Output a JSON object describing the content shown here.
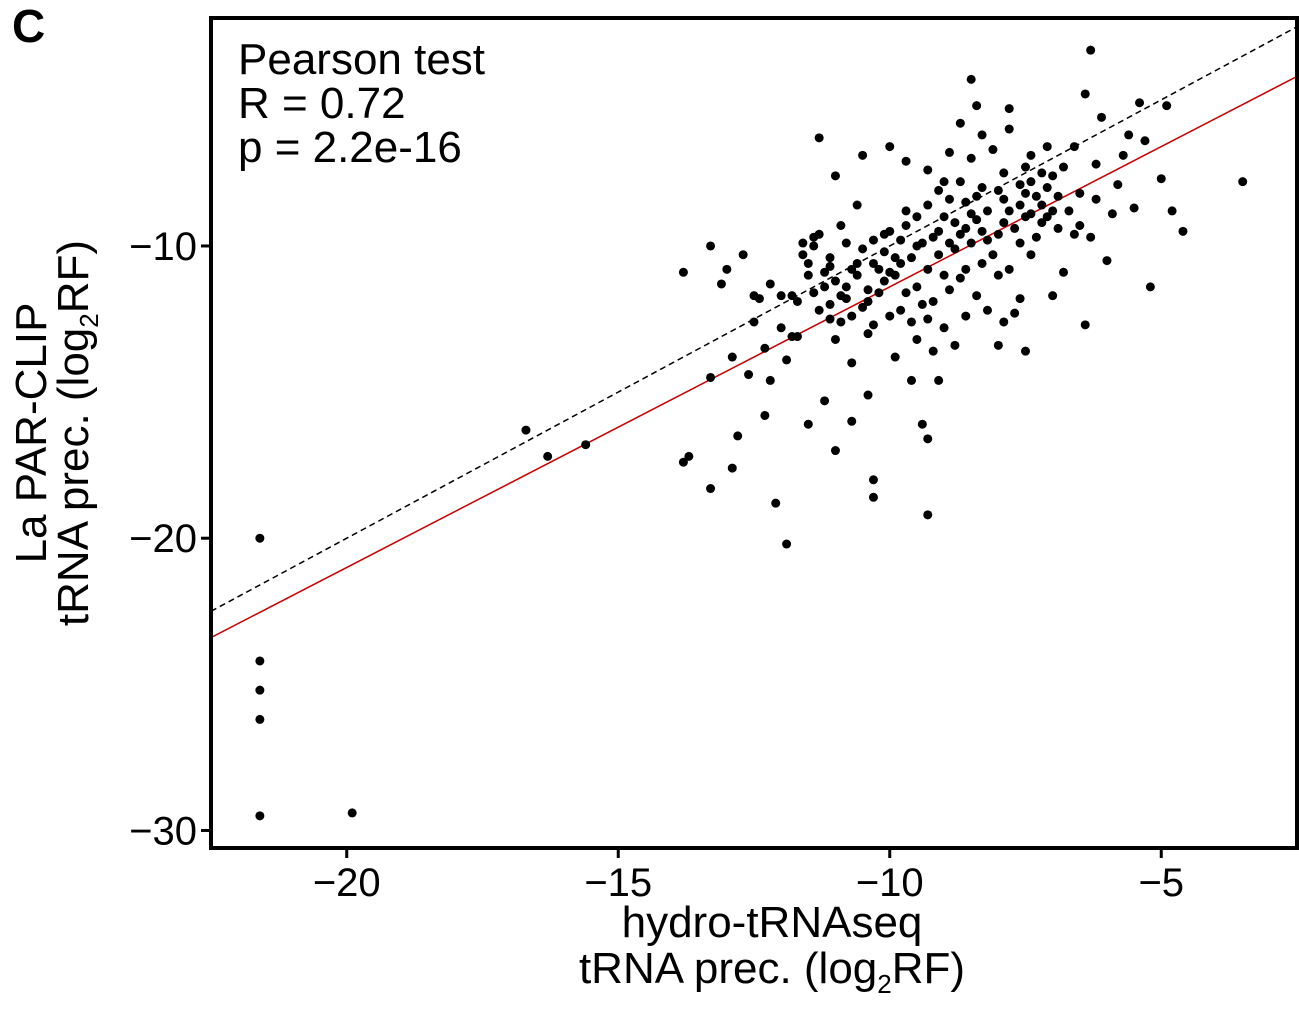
{
  "panel_label": "C",
  "chart_data": {
    "type": "scatter",
    "xlabel_line1": "hydro-tRNAseq",
    "xlabel_line2_pre": "tRNA prec. (log",
    "xlabel_line2_sub": "2",
    "xlabel_line2_post": "RF)",
    "ylabel_line1": "La PAR-CLIP",
    "ylabel_line2_pre": "tRNA prec. (log",
    "ylabel_line2_sub": "2",
    "ylabel_line2_post": "RF)",
    "xlim": [
      -22.5,
      -2.5
    ],
    "ylim": [
      -30.6,
      -2.2
    ],
    "xticks": [
      -20,
      -15,
      -10,
      -5
    ],
    "xtick_labels": [
      "−20",
      "−15",
      "−10",
      "−5"
    ],
    "yticks": [
      -10,
      -20,
      -30
    ],
    "ytick_labels": [
      "−10",
      "−20",
      "−30"
    ],
    "stats": {
      "line1": "Pearson test",
      "line2": "R = 0.72",
      "line3": "p = 2.2e-16"
    },
    "identity_line": {
      "slope": 1.0,
      "intercept": 0.0,
      "color": "#000000",
      "style": "dashed"
    },
    "regression_line": {
      "slope": 0.96,
      "intercept": -1.8,
      "color": "#cc0000",
      "style": "solid"
    },
    "point_color": "#000000",
    "points": [
      [
        -21.6,
        -20.0
      ],
      [
        -21.6,
        -24.2
      ],
      [
        -21.6,
        -25.2
      ],
      [
        -21.6,
        -26.2
      ],
      [
        -21.6,
        -29.5
      ],
      [
        -19.9,
        -29.4
      ],
      [
        -16.7,
        -16.3
      ],
      [
        -16.3,
        -17.2
      ],
      [
        -15.6,
        -16.8
      ],
      [
        -13.8,
        -10.9
      ],
      [
        -13.8,
        -17.4
      ],
      [
        -13.7,
        -17.2
      ],
      [
        -13.3,
        -10.0
      ],
      [
        -13.3,
        -14.5
      ],
      [
        -13.3,
        -18.3
      ],
      [
        -13.1,
        -11.3
      ],
      [
        -13.0,
        -10.8
      ],
      [
        -12.9,
        -13.8
      ],
      [
        -12.9,
        -17.6
      ],
      [
        -12.8,
        -16.5
      ],
      [
        -12.7,
        -10.3
      ],
      [
        -12.6,
        -14.4
      ],
      [
        -12.5,
        -12.6
      ],
      [
        -12.5,
        -11.7
      ],
      [
        -12.4,
        -11.8
      ],
      [
        -12.3,
        -13.5
      ],
      [
        -12.3,
        -15.8
      ],
      [
        -12.2,
        -14.6
      ],
      [
        -12.2,
        -11.3
      ],
      [
        -12.1,
        -18.8
      ],
      [
        -12.0,
        -11.7
      ],
      [
        -12.0,
        -12.8
      ],
      [
        -11.9,
        -20.2
      ],
      [
        -11.9,
        -13.9
      ],
      [
        -11.8,
        -13.1
      ],
      [
        -11.8,
        -11.7
      ],
      [
        -11.7,
        -11.9
      ],
      [
        -11.7,
        -13.1
      ],
      [
        -11.6,
        -9.9
      ],
      [
        -11.6,
        -10.3
      ],
      [
        -11.5,
        -11.0
      ],
      [
        -11.5,
        -16.1
      ],
      [
        -11.5,
        -10.6
      ],
      [
        -11.4,
        -9.7
      ],
      [
        -11.4,
        -10.0
      ],
      [
        -11.4,
        -11.6
      ],
      [
        -11.3,
        -12.2
      ],
      [
        -11.3,
        -6.3
      ],
      [
        -11.3,
        -9.6
      ],
      [
        -11.2,
        -10.9
      ],
      [
        -11.2,
        -11.4
      ],
      [
        -11.2,
        -15.3
      ],
      [
        -11.1,
        -12.5
      ],
      [
        -11.1,
        -12.0
      ],
      [
        -11.1,
        -10.4
      ],
      [
        -11.1,
        -10.7
      ],
      [
        -11.0,
        -7.6
      ],
      [
        -11.0,
        -11.2
      ],
      [
        -11.0,
        -13.2
      ],
      [
        -11.0,
        -17.0
      ],
      [
        -10.9,
        -9.3
      ],
      [
        -10.9,
        -11.7
      ],
      [
        -10.9,
        -12.6
      ],
      [
        -10.8,
        -11.8
      ],
      [
        -10.8,
        -9.9
      ],
      [
        -10.8,
        -11.4
      ],
      [
        -10.7,
        -14.0
      ],
      [
        -10.7,
        -12.4
      ],
      [
        -10.7,
        -10.8
      ],
      [
        -10.7,
        -16.0
      ],
      [
        -10.6,
        -10.6
      ],
      [
        -10.6,
        -8.6
      ],
      [
        -10.6,
        -11.0
      ],
      [
        -10.5,
        -6.9
      ],
      [
        -10.5,
        -10.1
      ],
      [
        -10.5,
        -12.1
      ],
      [
        -10.4,
        -11.5
      ],
      [
        -10.4,
        -15.1
      ],
      [
        -10.4,
        -11.9
      ],
      [
        -10.4,
        -13.0
      ],
      [
        -10.3,
        -9.8
      ],
      [
        -10.3,
        -10.6
      ],
      [
        -10.3,
        -12.7
      ],
      [
        -10.3,
        -18.0
      ],
      [
        -10.3,
        -18.6
      ],
      [
        -10.2,
        -10.8
      ],
      [
        -10.2,
        -11.6
      ],
      [
        -10.1,
        -10.2
      ],
      [
        -10.1,
        -9.6
      ],
      [
        -10.1,
        -11.2
      ],
      [
        -10.0,
        -6.6
      ],
      [
        -10.0,
        -9.5
      ],
      [
        -10.0,
        -10.9
      ],
      [
        -10.0,
        -12.4
      ],
      [
        -9.9,
        -13.8
      ],
      [
        -9.9,
        -10.4
      ],
      [
        -9.9,
        -11.0
      ],
      [
        -9.8,
        -9.8
      ],
      [
        -9.8,
        -12.2
      ],
      [
        -9.8,
        -10.6
      ],
      [
        -9.7,
        -7.1
      ],
      [
        -9.7,
        -8.8
      ],
      [
        -9.7,
        -9.3
      ],
      [
        -9.7,
        -11.6
      ],
      [
        -9.6,
        -10.4
      ],
      [
        -9.6,
        -12.6
      ],
      [
        -9.6,
        -14.6
      ],
      [
        -9.5,
        -9.0
      ],
      [
        -9.5,
        -10.0
      ],
      [
        -9.5,
        -11.4
      ],
      [
        -9.5,
        -13.2
      ],
      [
        -9.4,
        -9.9
      ],
      [
        -9.4,
        -12.0
      ],
      [
        -9.4,
        -16.1
      ],
      [
        -9.3,
        -7.4
      ],
      [
        -9.3,
        -8.6
      ],
      [
        -9.3,
        -10.8
      ],
      [
        -9.3,
        -12.5
      ],
      [
        -9.3,
        -16.6
      ],
      [
        -9.3,
        -19.2
      ],
      [
        -9.2,
        -9.7
      ],
      [
        -9.2,
        -11.9
      ],
      [
        -9.2,
        -13.6
      ],
      [
        -9.1,
        -8.1
      ],
      [
        -9.1,
        -9.5
      ],
      [
        -9.1,
        -10.3
      ],
      [
        -9.1,
        -14.6
      ],
      [
        -9.0,
        -7.8
      ],
      [
        -9.0,
        -9.0
      ],
      [
        -9.0,
        -11.0
      ],
      [
        -9.0,
        -12.8
      ],
      [
        -8.9,
        -6.8
      ],
      [
        -8.9,
        -8.4
      ],
      [
        -8.9,
        -9.9
      ],
      [
        -8.9,
        -11.5
      ],
      [
        -8.8,
        -9.2
      ],
      [
        -8.8,
        -10.1
      ],
      [
        -8.8,
        -13.4
      ],
      [
        -8.7,
        -5.8
      ],
      [
        -8.7,
        -7.8
      ],
      [
        -8.7,
        -9.6
      ],
      [
        -8.7,
        -11.1
      ],
      [
        -8.6,
        -8.5
      ],
      [
        -8.6,
        -9.4
      ],
      [
        -8.6,
        -10.8
      ],
      [
        -8.6,
        -12.4
      ],
      [
        -8.5,
        -4.3
      ],
      [
        -8.5,
        -7.0
      ],
      [
        -8.5,
        -8.9
      ],
      [
        -8.5,
        -9.9
      ],
      [
        -8.4,
        -5.2
      ],
      [
        -8.4,
        -8.3
      ],
      [
        -8.4,
        -9.1
      ],
      [
        -8.4,
        -11.7
      ],
      [
        -8.3,
        -6.2
      ],
      [
        -8.3,
        -8.0
      ],
      [
        -8.3,
        -9.5
      ],
      [
        -8.3,
        -10.6
      ],
      [
        -8.2,
        -12.2
      ],
      [
        -8.2,
        -8.8
      ],
      [
        -8.2,
        -9.8
      ],
      [
        -8.1,
        -10.3
      ],
      [
        -8.1,
        -6.7
      ],
      [
        -8.0,
        -8.1
      ],
      [
        -8.0,
        -9.6
      ],
      [
        -8.0,
        -11.0
      ],
      [
        -8.0,
        -13.4
      ],
      [
        -7.9,
        -7.5
      ],
      [
        -7.9,
        -8.4
      ],
      [
        -7.9,
        -9.2
      ],
      [
        -7.9,
        -12.6
      ],
      [
        -7.8,
        -5.3
      ],
      [
        -7.8,
        -6.0
      ],
      [
        -7.8,
        -8.8
      ],
      [
        -7.8,
        -10.8
      ],
      [
        -7.7,
        -9.4
      ],
      [
        -7.7,
        -12.3
      ],
      [
        -7.6,
        -7.9
      ],
      [
        -7.6,
        -8.6
      ],
      [
        -7.6,
        -9.9
      ],
      [
        -7.6,
        -11.8
      ],
      [
        -7.5,
        -7.3
      ],
      [
        -7.5,
        -8.2
      ],
      [
        -7.5,
        -9.0
      ],
      [
        -7.5,
        -13.6
      ],
      [
        -7.4,
        -6.9
      ],
      [
        -7.4,
        -7.8
      ],
      [
        -7.4,
        -8.9
      ],
      [
        -7.4,
        -10.3
      ],
      [
        -7.3,
        -8.3
      ],
      [
        -7.3,
        -9.7
      ],
      [
        -7.2,
        -7.5
      ],
      [
        -7.2,
        -8.6
      ],
      [
        -7.2,
        -9.2
      ],
      [
        -7.1,
        -6.6
      ],
      [
        -7.1,
        -8.0
      ],
      [
        -7.1,
        -9.0
      ],
      [
        -7.0,
        -7.6
      ],
      [
        -7.0,
        -8.8
      ],
      [
        -7.0,
        -11.7
      ],
      [
        -6.9,
        -8.3
      ],
      [
        -6.9,
        -9.4
      ],
      [
        -6.8,
        -7.3
      ],
      [
        -6.8,
        -10.9
      ],
      [
        -6.7,
        -8.8
      ],
      [
        -6.6,
        -9.6
      ],
      [
        -6.6,
        -6.6
      ],
      [
        -6.5,
        -9.3
      ],
      [
        -6.5,
        -8.2
      ],
      [
        -6.4,
        -4.8
      ],
      [
        -6.4,
        -12.7
      ],
      [
        -6.3,
        -3.3
      ],
      [
        -6.3,
        -9.7
      ],
      [
        -6.2,
        -7.2
      ],
      [
        -6.2,
        -8.4
      ],
      [
        -6.1,
        -5.6
      ],
      [
        -6.0,
        -10.5
      ],
      [
        -5.9,
        -8.9
      ],
      [
        -5.8,
        -7.9
      ],
      [
        -5.7,
        -6.9
      ],
      [
        -5.6,
        -6.2
      ],
      [
        -5.5,
        -8.7
      ],
      [
        -5.4,
        -5.1
      ],
      [
        -5.3,
        -6.4
      ],
      [
        -5.2,
        -11.4
      ],
      [
        -5.0,
        -7.7
      ],
      [
        -4.9,
        -5.2
      ],
      [
        -4.8,
        -8.8
      ],
      [
        -4.6,
        -9.5
      ],
      [
        -3.5,
        -7.8
      ]
    ]
  }
}
